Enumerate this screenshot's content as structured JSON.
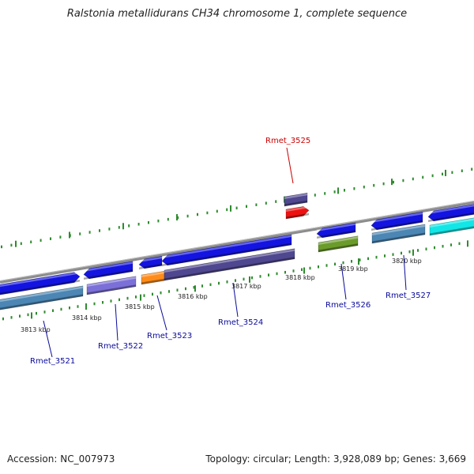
{
  "title": "Ralstonia metallidurans CH34 chromosome 1, complete sequence",
  "footer": {
    "accession": "Accession: NC_007973",
    "topology": "Topology: circular; Length: 3,928,089 bp; Genes: 3,669"
  },
  "colors": {
    "backbone": "#8c8c8c",
    "ticks": "#2e8b2e",
    "label_default": "#0a0a9a",
    "label_highlight": "#cc0000",
    "gene_blue": "#1414e0",
    "gene_steel": "#4b86b4",
    "gene_lavender": "#7b6fd8",
    "gene_orange": "#ff8c1a",
    "gene_slate": "#4f478f",
    "gene_red": "#ee1111",
    "gene_olive": "#6b9b2a",
    "gene_cyan": "#12e6e6"
  },
  "kbp_labels": [
    "3813 kbp",
    "3814 kbp",
    "3815 kbp",
    "3816 kbp",
    "3817 kbp",
    "3818 kbp",
    "3819 kbp",
    "3820 kbp"
  ],
  "gene_labels": [
    {
      "id": "Rmet_3521",
      "highlight": false
    },
    {
      "id": "Rmet_3522",
      "highlight": false
    },
    {
      "id": "Rmet_3523",
      "highlight": false
    },
    {
      "id": "Rmet_3524",
      "highlight": false
    },
    {
      "id": "Rmet_3525",
      "highlight": true
    },
    {
      "id": "Rmet_3526",
      "highlight": false
    },
    {
      "id": "Rmet_3527",
      "highlight": false
    }
  ],
  "genes": [
    {
      "name": "gene-outer-1",
      "track": "outer",
      "color": "#1414e0",
      "dir": "forward"
    },
    {
      "name": "gene-inner-1",
      "track": "inner",
      "color": "#4b86b4",
      "dir": "none"
    },
    {
      "name": "gene-outer-2",
      "track": "outer",
      "color": "#1414e0",
      "dir": "reverse"
    },
    {
      "name": "gene-inner-2",
      "track": "inner",
      "color": "#7b6fd8",
      "dir": "none"
    },
    {
      "name": "gene-outer-3",
      "track": "outer",
      "color": "#1414e0",
      "dir": "reverse"
    },
    {
      "name": "gene-inner-3",
      "track": "inner",
      "color": "#ff8c1a",
      "dir": "none"
    },
    {
      "name": "gene-outer-4",
      "track": "outer",
      "color": "#1414e0",
      "dir": "reverse"
    },
    {
      "name": "gene-inner-4",
      "track": "inner",
      "color": "#4f478f",
      "dir": "none"
    },
    {
      "name": "gene-top-slate",
      "track": "outer",
      "color": "#4f478f",
      "dir": "none"
    },
    {
      "name": "gene-top-red",
      "track": "outer",
      "color": "#ee1111",
      "dir": "forward"
    },
    {
      "name": "gene-outer-5",
      "track": "outer",
      "color": "#1414e0",
      "dir": "reverse"
    },
    {
      "name": "gene-inner-5",
      "track": "inner",
      "color": "#6b9b2a",
      "dir": "none"
    },
    {
      "name": "gene-outer-6",
      "track": "outer",
      "color": "#1414e0",
      "dir": "reverse"
    },
    {
      "name": "gene-inner-6",
      "track": "inner",
      "color": "#4b86b4",
      "dir": "none"
    },
    {
      "name": "gene-outer-7",
      "track": "outer",
      "color": "#1414e0",
      "dir": "reverse"
    },
    {
      "name": "gene-inner-7",
      "track": "inner",
      "color": "#12e6e6",
      "dir": "none"
    }
  ]
}
